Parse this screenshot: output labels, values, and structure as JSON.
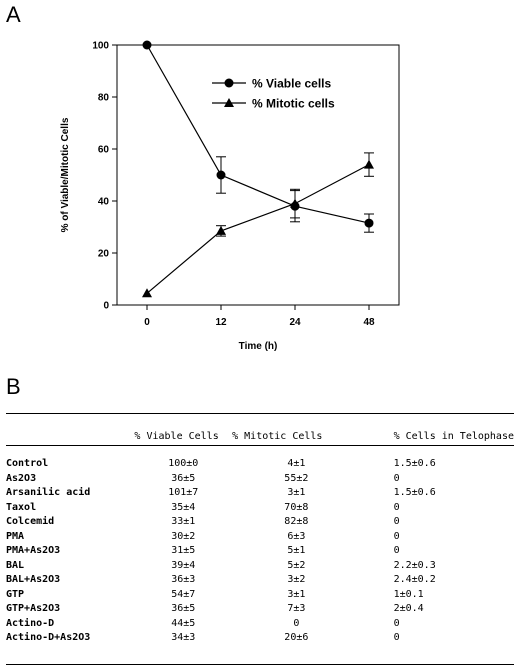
{
  "panel_labels": {
    "a": "A",
    "b": "B"
  },
  "chart_data": {
    "type": "line",
    "x": [
      0,
      12,
      24,
      48
    ],
    "xticks": [
      "0",
      "12",
      "24",
      "48"
    ],
    "xlabel": "Time (h)",
    "ylabel": "% of Viable/Mitotic Cells",
    "ylim": [
      0,
      100
    ],
    "yticks": [
      "0",
      "20",
      "40",
      "60",
      "80",
      "100"
    ],
    "legend_position": "upper-right",
    "series": [
      {
        "name": "% Viable cells",
        "marker": "circle",
        "values": [
          100,
          50,
          38,
          31.5
        ],
        "errors": [
          0,
          7,
          6,
          3.5
        ]
      },
      {
        "name": "% Mitotic cells",
        "marker": "triangle",
        "values": [
          4.5,
          28.5,
          39,
          54
        ],
        "errors": [
          0,
          2,
          5.5,
          4.5
        ]
      }
    ]
  },
  "table": {
    "headers": [
      "",
      "% Viable Cells",
      "% Mitotic Cells",
      "% Cells in Telophase"
    ],
    "rows": [
      [
        "Control",
        "100±0",
        "4±1",
        "1.5±0.6"
      ],
      [
        "As2O3",
        "36±5",
        "55±2",
        "0"
      ],
      [
        "Arsanilic acid",
        "101±7",
        "3±1",
        "1.5±0.6"
      ],
      [
        "Taxol",
        "35±4",
        "70±8",
        "0"
      ],
      [
        "Colcemid",
        "33±1",
        "82±8",
        "0"
      ],
      [
        "PMA",
        "30±2",
        "6±3",
        "0"
      ],
      [
        "PMA+As2O3",
        "31±5",
        "5±1",
        "0"
      ],
      [
        "BAL",
        "39±4",
        "5±2",
        "2.2±0.3"
      ],
      [
        "BAL+As2O3",
        "36±3",
        "3±2",
        "2.4±0.2"
      ],
      [
        "GTP",
        "54±7",
        "3±1",
        "1±0.1"
      ],
      [
        "GTP+As2O3",
        "36±5",
        "7±3",
        "2±0.4"
      ],
      [
        "Actino-D",
        "44±5",
        "0",
        "0"
      ],
      [
        "Actino-D+As2O3",
        "34±3",
        "20±6",
        "0"
      ]
    ]
  }
}
